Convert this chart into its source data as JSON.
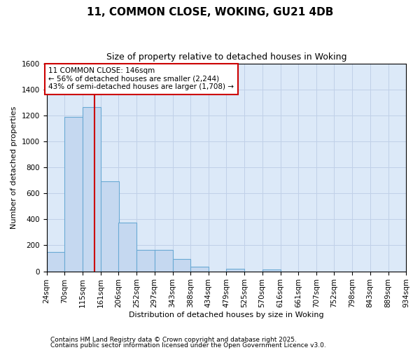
{
  "title1": "11, COMMON CLOSE, WOKING, GU21 4DB",
  "title2": "Size of property relative to detached houses in Woking",
  "xlabel": "Distribution of detached houses by size in Woking",
  "ylabel": "Number of detached properties",
  "bin_edges": [
    24,
    70,
    115,
    161,
    206,
    252,
    297,
    343,
    388,
    434,
    479,
    525,
    570,
    616,
    661,
    707,
    752,
    798,
    843,
    889,
    934
  ],
  "bin_labels": [
    "24sqm",
    "70sqm",
    "115sqm",
    "161sqm",
    "206sqm",
    "252sqm",
    "297sqm",
    "343sqm",
    "388sqm",
    "434sqm",
    "479sqm",
    "525sqm",
    "570sqm",
    "616sqm",
    "661sqm",
    "707sqm",
    "752sqm",
    "798sqm",
    "843sqm",
    "889sqm",
    "934sqm"
  ],
  "bar_heights": [
    150,
    1190,
    1265,
    690,
    375,
    165,
    165,
    95,
    35,
    0,
    20,
    0,
    15,
    0,
    0,
    0,
    0,
    0,
    0,
    0
  ],
  "bar_color": "#c5d8f0",
  "bar_edge_color": "#6aaad4",
  "ylim": [
    0,
    1600
  ],
  "yticks": [
    0,
    200,
    400,
    600,
    800,
    1000,
    1200,
    1400,
    1600
  ],
  "property_value": 146,
  "red_line_color": "#cc0000",
  "annotation_text": "11 COMMON CLOSE: 146sqm\n← 56% of detached houses are smaller (2,244)\n43% of semi-detached houses are larger (1,708) →",
  "annotation_box_color": "#cc0000",
  "fig_bg_color": "#ffffff",
  "ax_bg_color": "#dce9f8",
  "grid_color": "#c0d0e8",
  "footnote1": "Contains HM Land Registry data © Crown copyright and database right 2025.",
  "footnote2": "Contains public sector information licensed under the Open Government Licence v3.0.",
  "title1_fontsize": 11,
  "title2_fontsize": 9,
  "ylabel_fontsize": 8,
  "xlabel_fontsize": 8,
  "tick_fontsize": 7.5,
  "annotation_fontsize": 7.5,
  "footnote_fontsize": 6.5
}
